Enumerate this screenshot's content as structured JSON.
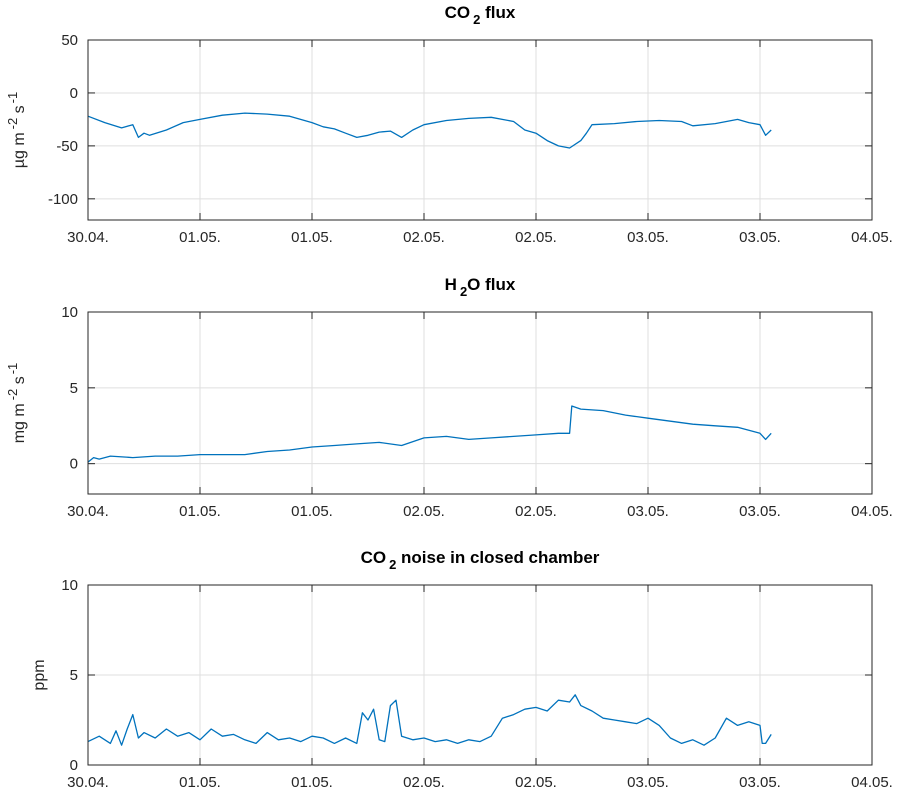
{
  "colors": {
    "series": "#0072bd",
    "axis": "#262626",
    "grid": "#dfdfdf"
  },
  "chart_data": [
    {
      "type": "line",
      "title": "CO",
      "title_sub": "2",
      "title_rest": " flux",
      "ylabel": "µg m",
      "ylabel_sup1": "-2",
      "ylabel_mid": " s",
      "ylabel_sup2": "-1",
      "xlim": [
        0,
        7
      ],
      "ylim": [
        -120,
        50
      ],
      "yticks": [
        -100,
        -50,
        0,
        50
      ],
      "xticks": [
        0,
        1,
        2,
        3,
        4,
        5,
        6,
        7
      ],
      "xtick_labels": [
        "30.04.",
        "01.05.",
        "01.05.",
        "02.05.",
        "02.05.",
        "03.05.",
        "03.05.",
        "04.05."
      ],
      "grid": true,
      "series": [
        {
          "x": [
            0.0,
            0.15,
            0.3,
            0.4,
            0.45,
            0.5,
            0.55,
            0.7,
            0.85,
            1.0,
            1.2,
            1.4,
            1.6,
            1.8,
            2.0,
            2.1,
            2.2,
            2.3,
            2.4,
            2.5,
            2.6,
            2.7,
            2.8,
            2.9,
            3.0,
            3.2,
            3.4,
            3.6,
            3.8,
            3.9,
            4.0,
            4.1,
            4.2,
            4.3,
            4.4,
            4.45,
            4.5,
            4.7,
            4.9,
            5.1,
            5.3,
            5.4,
            5.6,
            5.8,
            5.9,
            6.0,
            6.05,
            6.1
          ],
          "y": [
            -22,
            -28,
            -33,
            -30,
            -42,
            -38,
            -40,
            -35,
            -28,
            -25,
            -21,
            -19,
            -20,
            -22,
            -28,
            -32,
            -34,
            -38,
            -42,
            -40,
            -37,
            -36,
            -42,
            -35,
            -30,
            -26,
            -24,
            -23,
            -27,
            -35,
            -38,
            -45,
            -50,
            -52,
            -45,
            -38,
            -30,
            -29,
            -27,
            -26,
            -27,
            -31,
            -29,
            -25,
            -28,
            -30,
            -40,
            -35
          ]
        }
      ]
    },
    {
      "type": "line",
      "title": "H",
      "title_sub": "2",
      "title_rest": "O flux",
      "ylabel": "mg m",
      "ylabel_sup1": "-2",
      "ylabel_mid": " s",
      "ylabel_sup2": "-1",
      "xlim": [
        0,
        7
      ],
      "ylim": [
        -2,
        10
      ],
      "yticks": [
        0,
        5,
        10
      ],
      "xticks": [
        0,
        1,
        2,
        3,
        4,
        5,
        6,
        7
      ],
      "xtick_labels": [
        "30.04.",
        "01.05.",
        "01.05.",
        "02.05.",
        "02.05.",
        "03.05.",
        "03.05.",
        "04.05."
      ],
      "grid": true,
      "series": [
        {
          "x": [
            0.0,
            0.05,
            0.1,
            0.2,
            0.4,
            0.6,
            0.8,
            1.0,
            1.2,
            1.4,
            1.6,
            1.8,
            2.0,
            2.2,
            2.4,
            2.6,
            2.8,
            3.0,
            3.2,
            3.4,
            3.6,
            3.8,
            4.0,
            4.2,
            4.3,
            4.32,
            4.4,
            4.6,
            4.8,
            5.0,
            5.2,
            5.4,
            5.6,
            5.8,
            6.0,
            6.05,
            6.1
          ],
          "y": [
            0.1,
            0.4,
            0.3,
            0.5,
            0.4,
            0.5,
            0.5,
            0.6,
            0.6,
            0.6,
            0.8,
            0.9,
            1.1,
            1.2,
            1.3,
            1.4,
            1.2,
            1.7,
            1.8,
            1.6,
            1.7,
            1.8,
            1.9,
            2.0,
            2.0,
            3.8,
            3.6,
            3.5,
            3.2,
            3.0,
            2.8,
            2.6,
            2.5,
            2.4,
            2.0,
            1.6,
            2.0
          ]
        }
      ]
    },
    {
      "type": "line",
      "title": "CO",
      "title_sub": "2",
      "title_rest": " noise in closed chamber",
      "ylabel": "ppm",
      "xlim": [
        0,
        7
      ],
      "ylim": [
        0,
        10
      ],
      "yticks": [
        0,
        5,
        10
      ],
      "xticks": [
        0,
        1,
        2,
        3,
        4,
        5,
        6,
        7
      ],
      "xtick_labels": [
        "30.04.",
        "01.05.",
        "01.05.",
        "02.05.",
        "02.05.",
        "03.05.",
        "03.05.",
        "04.05."
      ],
      "grid": true,
      "series": [
        {
          "x": [
            0.0,
            0.1,
            0.2,
            0.25,
            0.3,
            0.35,
            0.4,
            0.45,
            0.5,
            0.6,
            0.7,
            0.8,
            0.9,
            1.0,
            1.1,
            1.2,
            1.3,
            1.4,
            1.5,
            1.6,
            1.7,
            1.8,
            1.9,
            2.0,
            2.1,
            2.2,
            2.3,
            2.4,
            2.45,
            2.5,
            2.55,
            2.6,
            2.65,
            2.7,
            2.75,
            2.8,
            2.9,
            3.0,
            3.1,
            3.2,
            3.3,
            3.4,
            3.5,
            3.6,
            3.7,
            3.8,
            3.9,
            4.0,
            4.1,
            4.2,
            4.3,
            4.35,
            4.4,
            4.5,
            4.6,
            4.7,
            4.8,
            4.9,
            5.0,
            5.1,
            5.2,
            5.3,
            5.4,
            5.5,
            5.6,
            5.7,
            5.8,
            5.9,
            6.0,
            6.02,
            6.05,
            6.1
          ],
          "y": [
            1.3,
            1.6,
            1.2,
            1.9,
            1.1,
            2.0,
            2.8,
            1.5,
            1.8,
            1.5,
            2.0,
            1.6,
            1.8,
            1.4,
            2.0,
            1.6,
            1.7,
            1.4,
            1.2,
            1.8,
            1.4,
            1.5,
            1.3,
            1.6,
            1.5,
            1.2,
            1.5,
            1.2,
            2.9,
            2.5,
            3.1,
            1.4,
            1.3,
            3.3,
            3.6,
            1.6,
            1.4,
            1.5,
            1.3,
            1.4,
            1.2,
            1.4,
            1.3,
            1.6,
            2.6,
            2.8,
            3.1,
            3.2,
            3.0,
            3.6,
            3.5,
            3.9,
            3.3,
            3.0,
            2.6,
            2.5,
            2.4,
            2.3,
            2.6,
            2.2,
            1.5,
            1.2,
            1.4,
            1.1,
            1.5,
            2.6,
            2.2,
            2.4,
            2.2,
            1.2,
            1.2,
            1.7
          ]
        }
      ]
    }
  ]
}
